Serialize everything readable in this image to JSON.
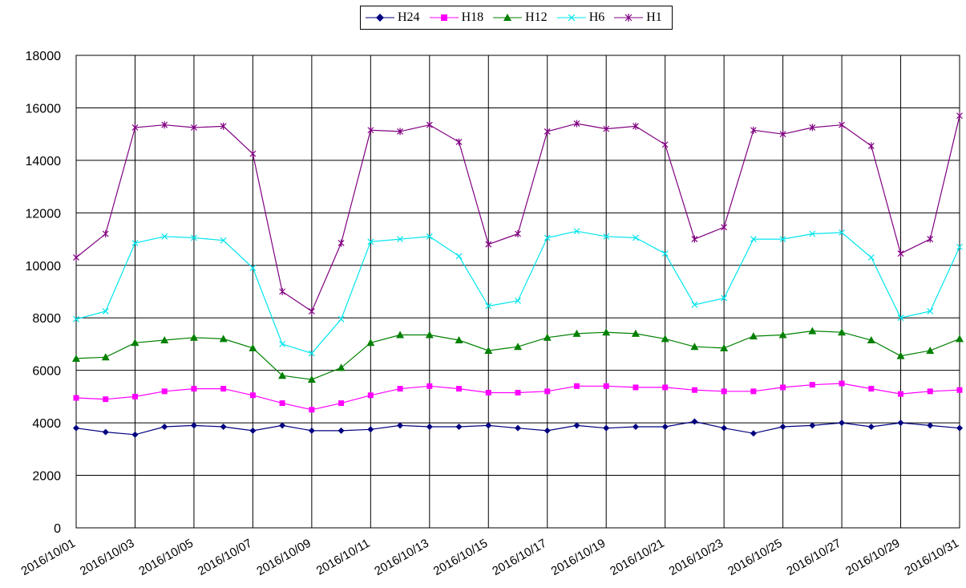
{
  "chart_data": {
    "type": "line",
    "title": "",
    "xlabel": "",
    "ylabel": "",
    "ylim": [
      0,
      18000
    ],
    "yticks": [
      0,
      2000,
      4000,
      6000,
      8000,
      10000,
      12000,
      14000,
      16000,
      18000
    ],
    "grid": true,
    "legend_position": "top-center",
    "x_tick_labels": [
      "2016/10/01",
      "2016/10/03",
      "2016/10/05",
      "2016/10/07",
      "2016/10/09",
      "2016/10/11",
      "2016/10/13",
      "2016/10/15",
      "2016/10/17",
      "2016/10/19",
      "2016/10/21",
      "2016/10/23",
      "2016/10/25",
      "2016/10/27",
      "2016/10/29",
      "2016/10/31"
    ],
    "x": [
      "2016/10/01",
      "2016/10/02",
      "2016/10/03",
      "2016/10/04",
      "2016/10/05",
      "2016/10/06",
      "2016/10/07",
      "2016/10/08",
      "2016/10/09",
      "2016/10/10",
      "2016/10/11",
      "2016/10/12",
      "2016/10/13",
      "2016/10/14",
      "2016/10/15",
      "2016/10/16",
      "2016/10/17",
      "2016/10/18",
      "2016/10/19",
      "2016/10/20",
      "2016/10/21",
      "2016/10/22",
      "2016/10/23",
      "2016/10/24",
      "2016/10/25",
      "2016/10/26",
      "2016/10/27",
      "2016/10/28",
      "2016/10/29",
      "2016/10/30",
      "2016/10/31"
    ],
    "series": [
      {
        "name": "H24",
        "color": "#000080",
        "marker": "diamond",
        "values": [
          3800,
          3650,
          3550,
          3850,
          3900,
          3850,
          3700,
          3900,
          3700,
          3700,
          3750,
          3900,
          3850,
          3850,
          3900,
          3800,
          3700,
          3900,
          3800,
          3850,
          3850,
          4050,
          3800,
          3600,
          3850,
          3900,
          4000,
          3850,
          4000,
          3900,
          3800
        ]
      },
      {
        "name": "H18",
        "color": "#ff00ff",
        "marker": "square",
        "values": [
          4950,
          4900,
          5000,
          5200,
          5300,
          5300,
          5050,
          4750,
          4500,
          4750,
          5050,
          5300,
          5400,
          5300,
          5150,
          5150,
          5200,
          5400,
          5400,
          5350,
          5350,
          5250,
          5200,
          5200,
          5350,
          5450,
          5500,
          5300,
          5100,
          5200,
          5250
        ]
      },
      {
        "name": "H12",
        "color": "#008000",
        "marker": "triangle",
        "values": [
          6450,
          6500,
          7050,
          7150,
          7250,
          7200,
          6850,
          5800,
          5650,
          6100,
          7050,
          7350,
          7350,
          7150,
          6750,
          6900,
          7250,
          7400,
          7450,
          7400,
          7200,
          6900,
          6850,
          7300,
          7350,
          7500,
          7450,
          7150,
          6550,
          6750,
          7200
        ]
      },
      {
        "name": "H6",
        "color": "#00e5ee",
        "marker": "x",
        "values": [
          7950,
          8250,
          10850,
          11100,
          11050,
          10950,
          9900,
          7000,
          6650,
          7950,
          10900,
          11000,
          11100,
          10350,
          8450,
          8650,
          11050,
          11300,
          11100,
          11050,
          10450,
          8500,
          8750,
          11000,
          11000,
          11200,
          11250,
          10300,
          8000,
          8250,
          10700
        ]
      },
      {
        "name": "H1",
        "color": "#800080",
        "marker": "star",
        "values": [
          10300,
          11200,
          15250,
          15350,
          15250,
          15300,
          14250,
          9000,
          8250,
          10850,
          15150,
          15100,
          15350,
          14700,
          10800,
          11200,
          15100,
          15400,
          15200,
          15300,
          14600,
          11000,
          11450,
          15150,
          15000,
          15250,
          15350,
          14550,
          10450,
          11000,
          15700
        ]
      }
    ]
  }
}
